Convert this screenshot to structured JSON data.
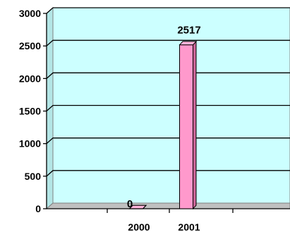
{
  "chart_data": {
    "type": "bar",
    "categories": [
      "2000",
      "2001"
    ],
    "series": [
      {
        "values": [
          0,
          2517
        ]
      }
    ],
    "data_labels": [
      "0",
      "2517"
    ],
    "ylim": [
      0,
      3000
    ],
    "yticks": [
      "0",
      "500",
      "1000",
      "1500",
      "2000",
      "2500",
      "3000"
    ],
    "grid": true,
    "legend": "none",
    "title": "",
    "xlabel": "",
    "ylabel": "",
    "colors": {
      "plot_background": "#ccffff",
      "floor": "#c0c0c0",
      "bar_front": "#ff99cc",
      "bar_side": "#cc6699",
      "bar_top": "#ffb3d9",
      "gridline": "#000000",
      "axis": "#000000"
    },
    "style": "3d-column"
  }
}
